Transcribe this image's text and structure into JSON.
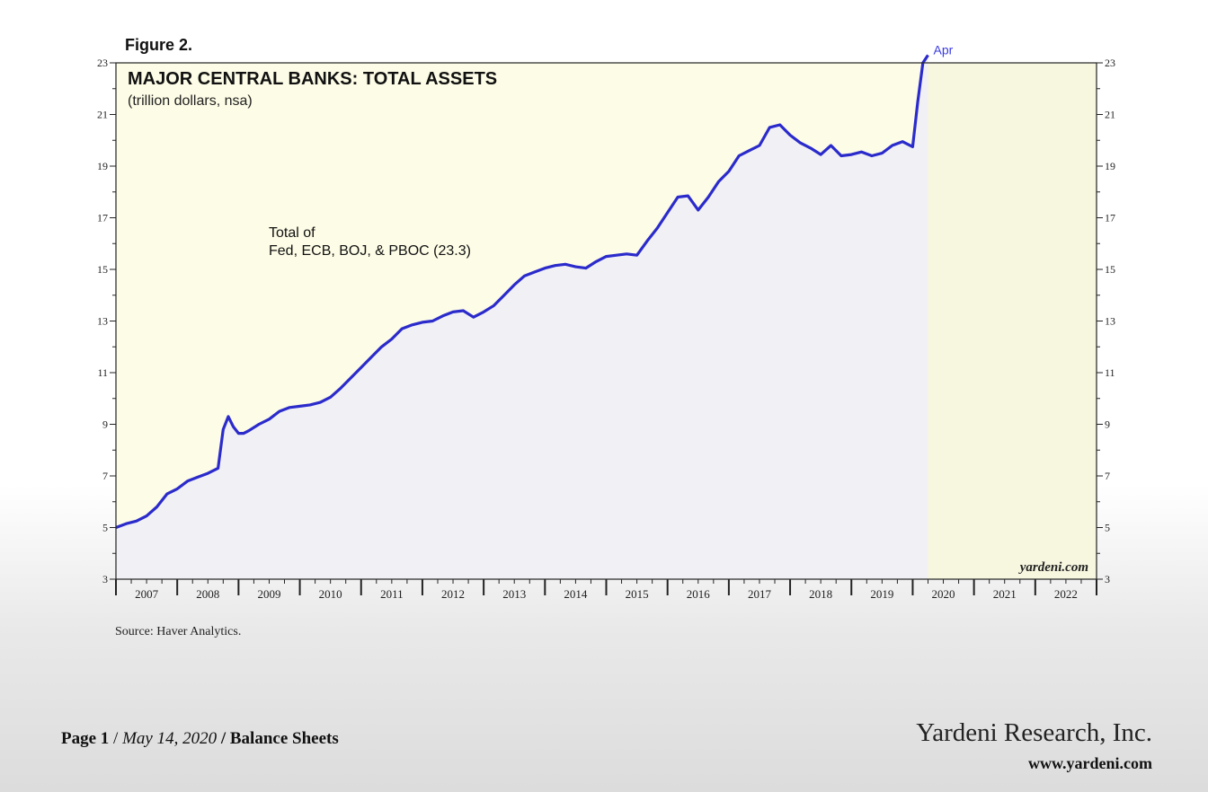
{
  "figure_label": "Figure 2.",
  "chart_data": {
    "type": "line",
    "title": "MAJOR CENTRAL BANKS: TOTAL ASSETS",
    "subtitle": "(trillion dollars, nsa)",
    "annotation": "Total of\nFed, ECB, BOJ, & PBOC (23.3)",
    "end_label": "Apr",
    "watermark": "yardeni.com",
    "ylim": [
      3,
      23
    ],
    "yticks": [
      3,
      5,
      7,
      9,
      11,
      13,
      15,
      17,
      19,
      21,
      23
    ],
    "xlim": [
      "2007-01",
      "2022-12"
    ],
    "xtick_labels": [
      "2007",
      "2008",
      "2009",
      "2010",
      "2011",
      "2012",
      "2013",
      "2014",
      "2015",
      "2016",
      "2017",
      "2018",
      "2019",
      "2020",
      "2021",
      "2022"
    ],
    "grid": false,
    "shaded_forecast_from": "2020-04",
    "colors": {
      "line": "#2b2bcc",
      "plot_bg": "#fdfce6",
      "area_fill": "#f1f1f5"
    },
    "series": [
      {
        "x": [
          "2007-01",
          "2007-03",
          "2007-05",
          "2007-07",
          "2007-09",
          "2007-11",
          "2008-01",
          "2008-03",
          "2008-05",
          "2008-07",
          "2008-09",
          "2008-10",
          "2008-11",
          "2008-12",
          "2009-01",
          "2009-02",
          "2009-03",
          "2009-05",
          "2009-07",
          "2009-09",
          "2009-11",
          "2010-01",
          "2010-03",
          "2010-05",
          "2010-07",
          "2010-09",
          "2010-11",
          "2011-01",
          "2011-03",
          "2011-05",
          "2011-07",
          "2011-09",
          "2011-11",
          "2012-01",
          "2012-03",
          "2012-05",
          "2012-07",
          "2012-09",
          "2012-11",
          "2013-01",
          "2013-03",
          "2013-05",
          "2013-07",
          "2013-09",
          "2013-11",
          "2014-01",
          "2014-03",
          "2014-05",
          "2014-07",
          "2014-09",
          "2014-11",
          "2015-01",
          "2015-03",
          "2015-05",
          "2015-07",
          "2015-09",
          "2015-11",
          "2016-01",
          "2016-03",
          "2016-05",
          "2016-07",
          "2016-09",
          "2016-11",
          "2017-01",
          "2017-03",
          "2017-05",
          "2017-07",
          "2017-09",
          "2017-11",
          "2018-01",
          "2018-03",
          "2018-05",
          "2018-07",
          "2018-09",
          "2018-11",
          "2019-01",
          "2019-03",
          "2019-05",
          "2019-07",
          "2019-09",
          "2019-11",
          "2020-01",
          "2020-02",
          "2020-03",
          "2020-04"
        ],
        "values": [
          5.0,
          5.15,
          5.25,
          5.45,
          5.8,
          6.3,
          6.5,
          6.8,
          6.95,
          7.1,
          7.3,
          8.8,
          9.3,
          8.9,
          8.65,
          8.65,
          8.75,
          9.0,
          9.2,
          9.5,
          9.65,
          9.7,
          9.75,
          9.85,
          10.05,
          10.4,
          10.8,
          11.2,
          11.6,
          12.0,
          12.3,
          12.7,
          12.85,
          12.95,
          13.0,
          13.2,
          13.35,
          13.4,
          13.15,
          13.35,
          13.6,
          14.0,
          14.4,
          14.75,
          14.9,
          15.05,
          15.15,
          15.2,
          15.1,
          15.05,
          15.3,
          15.5,
          15.55,
          15.6,
          15.55,
          16.1,
          16.6,
          17.2,
          17.8,
          17.85,
          17.3,
          17.8,
          18.4,
          18.8,
          19.4,
          19.6,
          19.8,
          20.5,
          20.6,
          20.2,
          19.9,
          19.7,
          19.45,
          19.8,
          19.4,
          19.45,
          19.55,
          19.4,
          19.5,
          19.8,
          19.95,
          19.75,
          21.5,
          23.0,
          23.3
        ]
      }
    ]
  },
  "source": "Source: Haver Analytics.",
  "footer": {
    "page": "Page 1",
    "date": "May 14, 2020",
    "section": "Balance Sheets",
    "company": "Yardeni Research, Inc.",
    "website": "www.yardeni.com"
  }
}
